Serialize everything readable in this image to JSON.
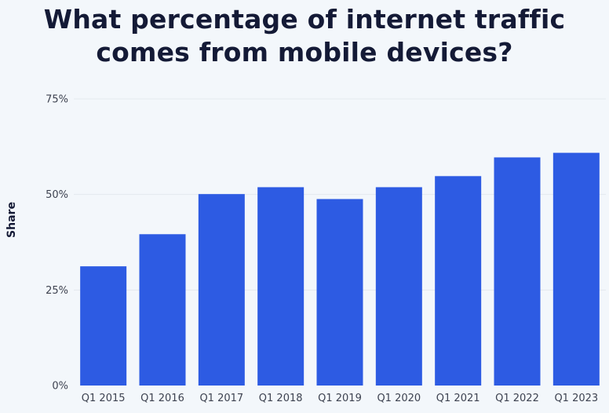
{
  "chart_data": {
    "type": "bar",
    "title": "What percentage of internet traffic comes from mobile devices?",
    "title_lines": [
      "What percentage of internet traffic",
      "comes from mobile devices?"
    ],
    "xlabel": "",
    "ylabel": "Share",
    "categories": [
      "Q1 2015",
      "Q1 2016",
      "Q1 2017",
      "Q1 2018",
      "Q1 2019",
      "Q1 2020",
      "Q1 2021",
      "Q1 2022",
      "Q1 2023"
    ],
    "values": [
      31.2,
      39.6,
      50.1,
      51.9,
      48.8,
      51.9,
      54.8,
      59.7,
      60.9
    ],
    "ylim": [
      0,
      75
    ],
    "yticks": [
      0,
      25,
      50,
      75
    ],
    "ytick_labels": [
      "0%",
      "25%",
      "50%",
      "75%"
    ],
    "grid": true,
    "legend": "none",
    "colors": {
      "bar": "#2d5be3",
      "grid": "#e3e8ef",
      "background": "#f3f7fb",
      "title": "#141a36"
    }
  }
}
